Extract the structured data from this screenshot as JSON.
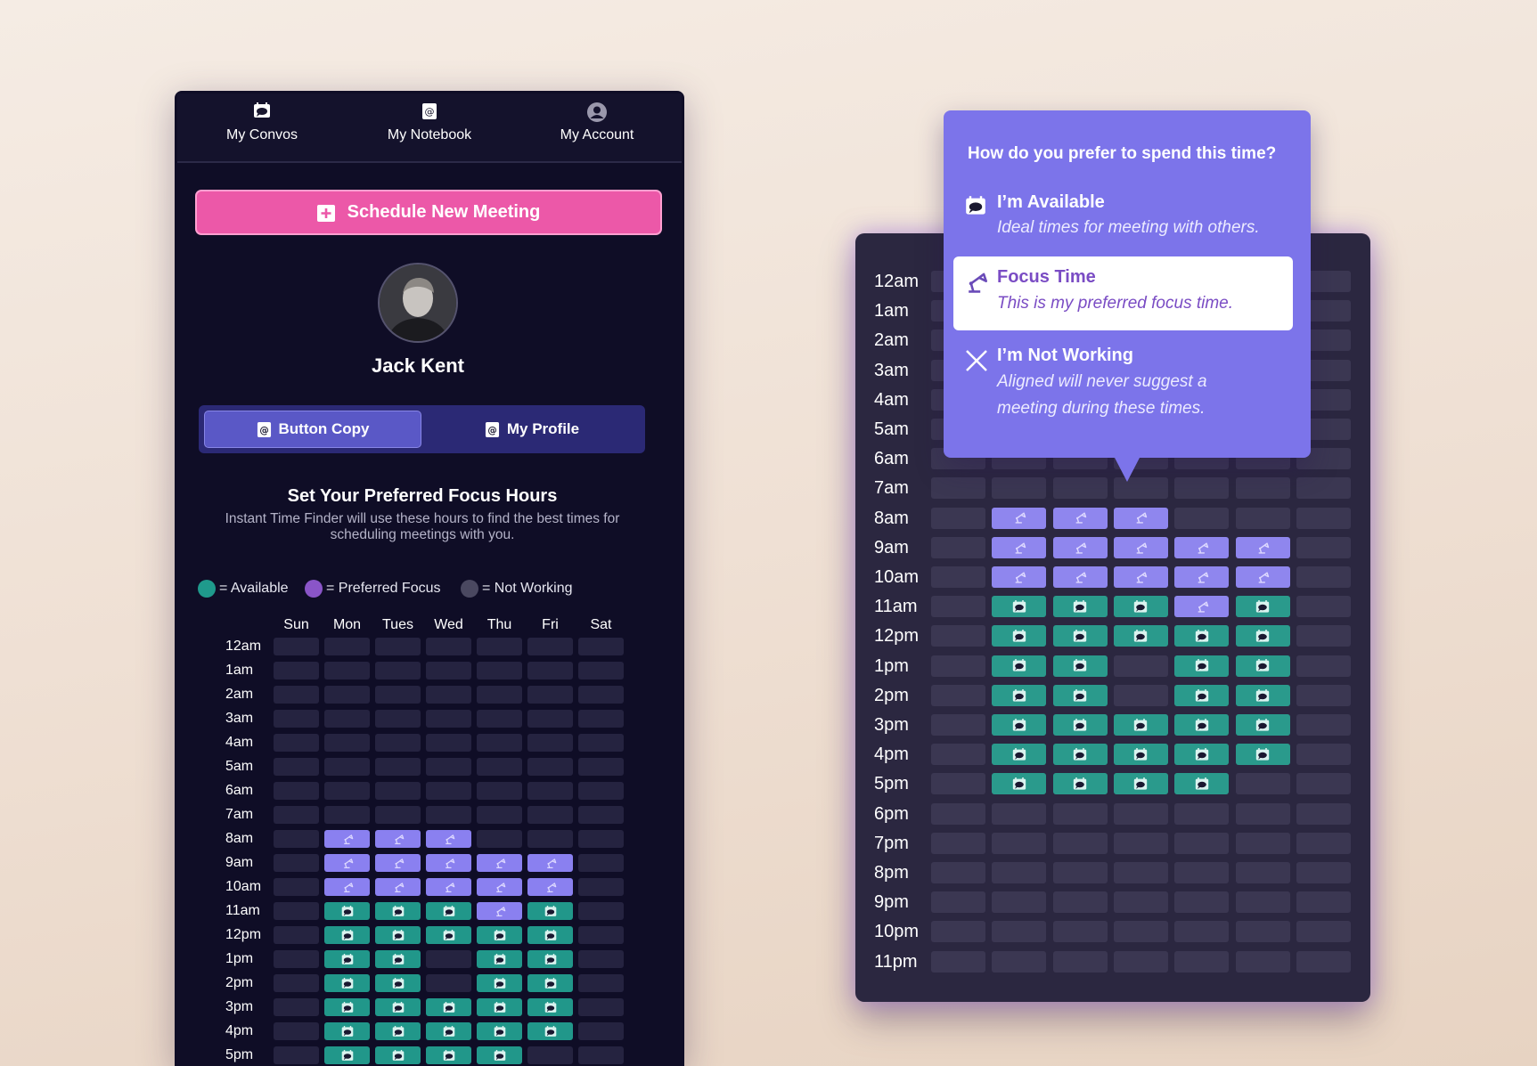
{
  "nav": [
    "My Convos",
    "My Notebook",
    "My Account"
  ],
  "schedule_button": "Schedule New Meeting",
  "profile": {
    "name": "Jack Kent"
  },
  "tabs": [
    "Button Copy",
    "My Profile"
  ],
  "focus_hours": {
    "title": "Set Your Preferred Focus Hours",
    "description": "Instant Time Finder will use these hours to find the best times for scheduling meetings with you.",
    "legend": [
      {
        "state": "available",
        "label": "= Available"
      },
      {
        "state": "focus",
        "label": "= Preferred Focus"
      },
      {
        "state": "off",
        "label": "= Not Working"
      }
    ],
    "days": [
      "Sun",
      "Mon",
      "Tues",
      "Wed",
      "Thu",
      "Fri",
      "Sat"
    ],
    "hours": [
      "12am",
      "1am",
      "2am",
      "3am",
      "4am",
      "5am",
      "6am",
      "7am",
      "8am",
      "9am",
      "10am",
      "11am",
      "12pm",
      "1pm",
      "2pm",
      "3pm",
      "4pm",
      "5pm",
      "6pm",
      "7pm",
      "8pm",
      "9pm",
      "10pm",
      "11pm"
    ],
    "schedule": [
      [
        "off",
        "off",
        "off",
        "off",
        "off",
        "off",
        "off"
      ],
      [
        "off",
        "off",
        "off",
        "off",
        "off",
        "off",
        "off"
      ],
      [
        "off",
        "off",
        "off",
        "off",
        "off",
        "off",
        "off"
      ],
      [
        "off",
        "off",
        "off",
        "off",
        "off",
        "off",
        "off"
      ],
      [
        "off",
        "off",
        "off",
        "off",
        "off",
        "off",
        "off"
      ],
      [
        "off",
        "off",
        "off",
        "off",
        "off",
        "off",
        "off"
      ],
      [
        "off",
        "off",
        "off",
        "off",
        "off",
        "off",
        "off"
      ],
      [
        "off",
        "off",
        "off",
        "off",
        "off",
        "off",
        "off"
      ],
      [
        "off",
        "focus",
        "focus",
        "focus",
        "off",
        "off",
        "off"
      ],
      [
        "off",
        "focus",
        "focus",
        "focus",
        "focus",
        "focus",
        "off"
      ],
      [
        "off",
        "focus",
        "focus",
        "focus",
        "focus",
        "focus",
        "off"
      ],
      [
        "off",
        "available",
        "available",
        "available",
        "focus",
        "available",
        "off"
      ],
      [
        "off",
        "available",
        "available",
        "available",
        "available",
        "available",
        "off"
      ],
      [
        "off",
        "available",
        "available",
        "off",
        "available",
        "available",
        "off"
      ],
      [
        "off",
        "available",
        "available",
        "off",
        "available",
        "available",
        "off"
      ],
      [
        "off",
        "available",
        "available",
        "available",
        "available",
        "available",
        "off"
      ],
      [
        "off",
        "available",
        "available",
        "available",
        "available",
        "available",
        "off"
      ],
      [
        "off",
        "available",
        "available",
        "available",
        "available",
        "off",
        "off"
      ],
      [
        "off",
        "off",
        "off",
        "off",
        "off",
        "off",
        "off"
      ],
      [
        "off",
        "off",
        "off",
        "off",
        "off",
        "off",
        "off"
      ],
      [
        "off",
        "off",
        "off",
        "off",
        "off",
        "off",
        "off"
      ],
      [
        "off",
        "off",
        "off",
        "off",
        "off",
        "off",
        "off"
      ],
      [
        "off",
        "off",
        "off",
        "off",
        "off",
        "off",
        "off"
      ],
      [
        "off",
        "off",
        "off",
        "off",
        "off",
        "off",
        "off"
      ]
    ]
  },
  "popup": {
    "title": "How do you prefer to spend this time?",
    "options": [
      {
        "title": "I’m Available",
        "description": "Ideal times for meeting with others."
      },
      {
        "title": "Focus Time",
        "description": "This is my preferred focus time."
      },
      {
        "title": "I’m Not Working",
        "description": "Aligned will never suggest a meeting during these times."
      }
    ]
  }
}
